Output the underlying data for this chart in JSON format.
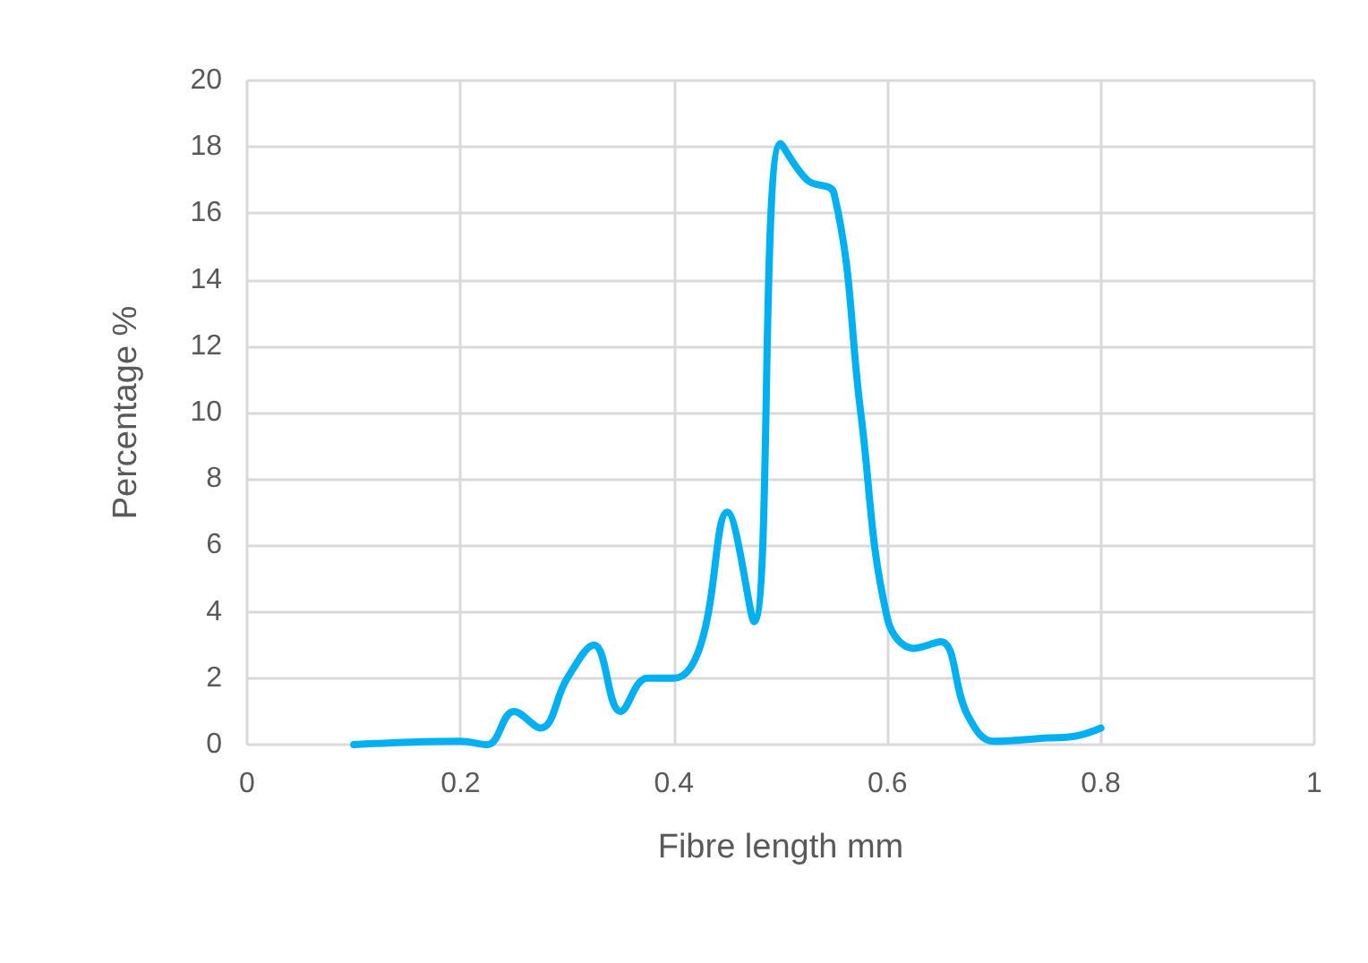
{
  "chart_data": {
    "type": "line",
    "xlabel": "Fibre length mm",
    "ylabel": "Percentage %",
    "series": [
      {
        "color": "#00b0f0",
        "x": [
          0.1,
          0.2,
          0.225,
          0.25,
          0.275,
          0.3,
          0.325,
          0.35,
          0.375,
          0.4,
          0.425,
          0.45,
          0.475,
          0.5,
          0.525,
          0.55,
          0.575,
          0.6,
          0.625,
          0.65,
          0.675,
          0.7,
          0.75,
          0.775,
          0.8
        ],
        "values": [
          0,
          0.1,
          0,
          1,
          0.5,
          2,
          3,
          1,
          2,
          2,
          3,
          7,
          3.7,
          18.1,
          17,
          16.6,
          10,
          3.8,
          2.9,
          3.1,
          0.9,
          0.1,
          0.2,
          0.25,
          0.5
        ]
      }
    ],
    "xlim": [
      0,
      1
    ],
    "xticks": [
      0,
      0.2,
      0.4,
      0.6,
      0.8,
      1
    ],
    "ylim": [
      0,
      20
    ],
    "yticks": [
      0,
      2,
      4,
      6,
      8,
      10,
      12,
      14,
      16,
      18,
      20
    ],
    "grid": true,
    "marker": "none",
    "line_style": "solid"
  }
}
